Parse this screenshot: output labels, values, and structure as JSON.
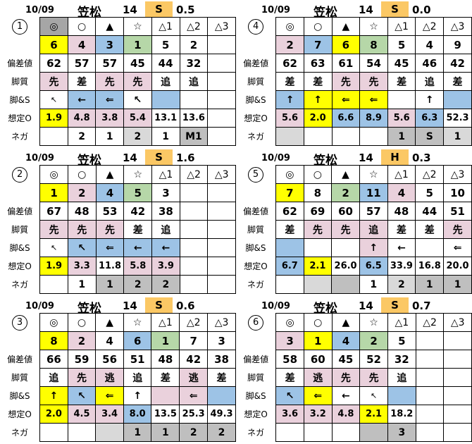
{
  "colors": {
    "yellow": "#ffff00",
    "pink": "#ead1dc",
    "blue": "#9dc3e6",
    "green": "#b6d7a8",
    "orange": "#fbc865",
    "gray_dark": "#a6a6a6",
    "gray_mid": "#bfbfbf",
    "gray_light": "#d9d9d9"
  },
  "row_order": [
    "marks",
    "numbers",
    "hensachi",
    "kyakushitsu",
    "legs_s",
    "souteiO",
    "nega"
  ],
  "row_labels": {
    "marks": "",
    "numbers": "",
    "hensachi": "偏差値",
    "kyakushitsu": "脚質",
    "legs_s": "脚&S",
    "souteiO": "想定O",
    "nega": "ネガ"
  },
  "tables": [
    {
      "number": "1",
      "header": {
        "date": "10/09",
        "track": "笠松",
        "race": "14",
        "cls": "S",
        "val": "0.5"
      },
      "rows": {
        "marks": [
          {
            "t": "◎",
            "c": "gd"
          },
          {
            "t": "○"
          },
          {
            "t": "▲"
          },
          {
            "t": "☆"
          },
          {
            "t": "△1"
          },
          {
            "t": "△2"
          },
          {
            "t": "△3"
          }
        ],
        "numbers": [
          {
            "t": "6",
            "c": "y"
          },
          {
            "t": "4",
            "c": "p"
          },
          {
            "t": "3",
            "c": "b"
          },
          {
            "t": "1",
            "c": "g"
          },
          {
            "t": "5"
          },
          {
            "t": "2"
          },
          {}
        ],
        "hensachi": [
          {
            "t": "62"
          },
          {
            "t": "57"
          },
          {
            "t": "57"
          },
          {
            "t": "45"
          },
          {
            "t": "44"
          },
          {
            "t": "32"
          },
          {}
        ],
        "kyakushitsu": [
          {
            "t": "先",
            "c": "p"
          },
          {
            "t": "差"
          },
          {
            "t": "先",
            "c": "p"
          },
          {
            "t": "先",
            "c": "p"
          },
          {
            "t": "追"
          },
          {
            "t": "追"
          },
          {}
        ],
        "legs_s": [
          {
            "t": "↖",
            "s": "thin"
          },
          {
            "t": "←",
            "c": "b"
          },
          {
            "t": "⇐",
            "c": "b"
          },
          {
            "t": "↖"
          },
          {
            "c": "b"
          },
          {},
          {}
        ],
        "souteiO": [
          {
            "t": "1.9",
            "c": "y"
          },
          {
            "t": "4.8",
            "c": "p"
          },
          {
            "t": "3.8",
            "c": "p"
          },
          {
            "t": "5.4",
            "c": "p"
          },
          {
            "t": "13.1"
          },
          {
            "t": "13.6"
          },
          {}
        ],
        "nega": [
          {},
          {
            "t": "2"
          },
          {
            "t": "1"
          },
          {
            "t": "2",
            "c": "gl"
          },
          {
            "t": "1"
          },
          {
            "t": "M1",
            "c": "gm"
          },
          {}
        ]
      }
    },
    {
      "number": "2",
      "header": {
        "date": "10/09",
        "track": "笠松",
        "race": "14",
        "cls": "S",
        "val": "1.6"
      },
      "rows": {
        "marks": [
          {
            "t": "◎"
          },
          {
            "t": "○"
          },
          {
            "t": "▲"
          },
          {
            "t": "☆"
          },
          {
            "t": "△1"
          },
          {
            "t": "△2"
          },
          {
            "t": "△3"
          }
        ],
        "numbers": [
          {
            "t": "1",
            "c": "y"
          },
          {
            "t": "2",
            "c": "p"
          },
          {
            "t": "4",
            "c": "b"
          },
          {
            "t": "5",
            "c": "g"
          },
          {
            "t": "3"
          },
          {},
          {}
        ],
        "hensachi": [
          {
            "t": "67"
          },
          {
            "t": "48"
          },
          {
            "t": "53"
          },
          {
            "t": "42"
          },
          {
            "t": "38"
          },
          {},
          {}
        ],
        "kyakushitsu": [
          {
            "t": "先",
            "c": "p"
          },
          {
            "t": "先",
            "c": "p"
          },
          {
            "t": "先",
            "c": "p"
          },
          {
            "t": "差"
          },
          {
            "t": "追"
          },
          {},
          {}
        ],
        "legs_s": [
          {
            "t": "↖",
            "s": "thin"
          },
          {
            "t": "↖",
            "c": "b"
          },
          {
            "t": "⇐",
            "c": "b"
          },
          {
            "t": "←",
            "c": "b"
          },
          {
            "t": "←",
            "c": "b"
          },
          {},
          {}
        ],
        "souteiO": [
          {
            "t": "1.9",
            "c": "y"
          },
          {
            "t": "3.3",
            "c": "p"
          },
          {
            "t": "11.8"
          },
          {
            "t": "5.8",
            "c": "p"
          },
          {
            "t": "3.9",
            "c": "p"
          },
          {},
          {}
        ],
        "nega": [
          {},
          {
            "t": "1"
          },
          {
            "t": "1",
            "c": "gm"
          },
          {
            "t": "2",
            "c": "gm"
          },
          {
            "t": "2",
            "c": "gm"
          },
          {},
          {}
        ]
      }
    },
    {
      "number": "3",
      "header": {
        "date": "10/09",
        "track": "笠松",
        "race": "14",
        "cls": "S",
        "val": "0.6"
      },
      "rows": {
        "marks": [
          {
            "t": "◎"
          },
          {
            "t": "○"
          },
          {
            "t": "▲"
          },
          {
            "t": "☆"
          },
          {
            "t": "△1"
          },
          {
            "t": "△2"
          },
          {
            "t": "△3"
          }
        ],
        "numbers": [
          {
            "t": "8",
            "c": "y"
          },
          {
            "t": "2",
            "c": "p"
          },
          {
            "t": "4"
          },
          {
            "t": "6",
            "c": "b"
          },
          {
            "t": "1",
            "c": "g"
          },
          {
            "t": "7"
          },
          {
            "t": "3"
          }
        ],
        "hensachi": [
          {
            "t": "66"
          },
          {
            "t": "59"
          },
          {
            "t": "56"
          },
          {
            "t": "51"
          },
          {
            "t": "48"
          },
          {
            "t": "42"
          },
          {
            "t": "38"
          }
        ],
        "kyakushitsu": [
          {
            "t": "追"
          },
          {
            "t": "先",
            "c": "p"
          },
          {
            "t": "逃",
            "c": "p"
          },
          {
            "t": "追"
          },
          {
            "t": "差"
          },
          {
            "t": "逃",
            "c": "p"
          },
          {
            "t": "差"
          }
        ],
        "legs_s": [
          {
            "t": "↑",
            "c": "y"
          },
          {
            "t": "↖",
            "c": "b"
          },
          {
            "t": "⇐",
            "c": "y"
          },
          {
            "t": "↑"
          },
          {
            "c": "p"
          },
          {
            "t": "⇐",
            "c": "p"
          },
          {
            "c": "b"
          }
        ],
        "souteiO": [
          {
            "t": "2.0",
            "c": "y"
          },
          {
            "t": "4.5",
            "c": "p"
          },
          {
            "t": "3.4",
            "c": "p"
          },
          {
            "t": "8.0",
            "c": "b"
          },
          {
            "t": "13.5"
          },
          {
            "t": "25.3"
          },
          {
            "t": "49.3"
          }
        ],
        "nega": [
          {},
          {},
          {
            "c": "gl"
          },
          {
            "t": "1",
            "c": "gm"
          },
          {
            "t": "1",
            "c": "gm"
          },
          {
            "t": "2",
            "c": "gm"
          },
          {
            "t": "2",
            "c": "gm"
          }
        ]
      }
    },
    {
      "number": "4",
      "header": {
        "date": "10/09",
        "track": "笠松",
        "race": "14",
        "cls": "S",
        "val": "0.0"
      },
      "rows": {
        "marks": [
          {
            "t": "◎"
          },
          {
            "t": "○"
          },
          {
            "t": "▲"
          },
          {
            "t": "☆"
          },
          {
            "t": "△1"
          },
          {
            "t": "△2"
          },
          {
            "t": "△3"
          }
        ],
        "numbers": [
          {
            "t": "2",
            "c": "p"
          },
          {
            "t": "7",
            "c": "b"
          },
          {
            "t": "6",
            "c": "y"
          },
          {
            "t": "8",
            "c": "g"
          },
          {
            "t": "5"
          },
          {
            "t": "4"
          },
          {
            "t": "9"
          }
        ],
        "hensachi": [
          {
            "t": "62"
          },
          {
            "t": "63"
          },
          {
            "t": "61"
          },
          {
            "t": "54"
          },
          {
            "t": "45"
          },
          {
            "t": "46"
          },
          {
            "t": "42"
          }
        ],
        "kyakushitsu": [
          {
            "t": "差"
          },
          {
            "t": "差"
          },
          {
            "t": "先",
            "c": "p"
          },
          {
            "t": "先",
            "c": "p"
          },
          {
            "t": "差"
          },
          {
            "t": "追"
          },
          {
            "t": "差"
          }
        ],
        "legs_s": [
          {
            "t": "↑",
            "c": "b"
          },
          {
            "t": "↑",
            "c": "y"
          },
          {
            "t": "⇐",
            "c": "y"
          },
          {
            "t": "⇐",
            "c": "y"
          },
          {},
          {
            "t": "↑"
          },
          {
            "c": "b"
          }
        ],
        "souteiO": [
          {
            "t": "5.6",
            "c": "p"
          },
          {
            "t": "2.0",
            "c": "y"
          },
          {
            "t": "6.6",
            "c": "b"
          },
          {
            "t": "8.9",
            "c": "b"
          },
          {
            "t": "5.6",
            "c": "p"
          },
          {
            "t": "6.3",
            "c": "b"
          },
          {
            "t": "52.3"
          }
        ],
        "nega": [
          {
            "c": "gl"
          },
          {},
          {},
          {},
          {
            "t": "1",
            "c": "gm"
          },
          {
            "t": "S",
            "c": "gm"
          },
          {
            "t": "1",
            "c": "gl"
          }
        ]
      }
    },
    {
      "number": "5",
      "header": {
        "date": "10/09",
        "track": "笠松",
        "race": "14",
        "cls": "H",
        "val": "0.3"
      },
      "rows": {
        "marks": [
          {
            "t": "◎"
          },
          {
            "t": "○"
          },
          {
            "t": "▲"
          },
          {
            "t": "☆"
          },
          {
            "t": "△1"
          },
          {
            "t": "△2"
          },
          {
            "t": "△3"
          }
        ],
        "numbers": [
          {
            "t": "7",
            "c": "y"
          },
          {
            "t": "8"
          },
          {
            "t": "2",
            "c": "g"
          },
          {
            "t": "11",
            "c": "b"
          },
          {
            "t": "4",
            "c": "p"
          },
          {
            "t": "5"
          },
          {
            "t": "10"
          }
        ],
        "hensachi": [
          {
            "t": "62"
          },
          {
            "t": "69"
          },
          {
            "t": "60"
          },
          {
            "t": "57"
          },
          {
            "t": "48"
          },
          {
            "t": "44"
          },
          {
            "t": "51"
          }
        ],
        "kyakushitsu": [
          {
            "t": "差"
          },
          {
            "t": "先",
            "c": "p"
          },
          {
            "t": "先",
            "c": "p"
          },
          {
            "t": "追",
            "c": "p"
          },
          {
            "t": "差"
          },
          {
            "t": "差"
          },
          {
            "t": "先",
            "c": "p"
          }
        ],
        "legs_s": [
          {
            "c": "b"
          },
          {},
          {},
          {
            "t": "↑",
            "c": "p"
          },
          {
            "t": "←"
          },
          {},
          {
            "t": "⇐"
          }
        ],
        "souteiO": [
          {
            "t": "6.7",
            "c": "b"
          },
          {
            "t": "2.1",
            "c": "y"
          },
          {
            "t": "26.0"
          },
          {
            "t": "6.5",
            "c": "b"
          },
          {
            "t": "33.9"
          },
          {
            "t": "16.8"
          },
          {
            "t": "20.0"
          }
        ],
        "nega": [
          {},
          {
            "c": "gl"
          },
          {
            "c": "gm"
          },
          {
            "t": "1"
          },
          {
            "t": "2",
            "c": "gl"
          },
          {
            "t": "1",
            "c": "gm"
          },
          {
            "t": "1",
            "c": "gm"
          }
        ]
      }
    },
    {
      "number": "6",
      "header": {
        "date": "10/09",
        "track": "笠松",
        "race": "14",
        "cls": "S",
        "val": "0.7"
      },
      "rows": {
        "marks": [
          {
            "t": "◎"
          },
          {
            "t": "○"
          },
          {
            "t": "▲"
          },
          {
            "t": "☆"
          },
          {
            "t": "△1"
          },
          {
            "t": "△2"
          },
          {
            "t": "△3"
          }
        ],
        "numbers": [
          {
            "t": "3",
            "c": "p"
          },
          {
            "t": "1",
            "c": "y"
          },
          {
            "t": "4",
            "c": "b"
          },
          {
            "t": "2",
            "c": "g"
          },
          {
            "t": "5"
          },
          {},
          {}
        ],
        "hensachi": [
          {
            "t": "58"
          },
          {
            "t": "60"
          },
          {
            "t": "45"
          },
          {
            "t": "52"
          },
          {
            "t": "32"
          },
          {},
          {}
        ],
        "kyakushitsu": [
          {
            "t": "差"
          },
          {
            "t": "逃",
            "c": "p"
          },
          {
            "t": "先",
            "c": "p"
          },
          {
            "t": "先",
            "c": "p"
          },
          {
            "t": "追"
          },
          {},
          {}
        ],
        "legs_s": [
          {
            "t": "↖",
            "c": "b"
          },
          {
            "t": "⇐",
            "c": "y"
          },
          {
            "t": "←"
          },
          {
            "t": "↖",
            "s": "thin"
          },
          {
            "c": "b"
          },
          {},
          {}
        ],
        "souteiO": [
          {
            "t": "3.6",
            "c": "p"
          },
          {
            "t": "3.2",
            "c": "p"
          },
          {
            "t": "4.8",
            "c": "p"
          },
          {
            "t": "2.1",
            "c": "y"
          },
          {
            "t": "18.2"
          },
          {},
          {}
        ],
        "nega": [
          {},
          {},
          {},
          {
            "c": "gm"
          },
          {
            "t": "3",
            "c": "gm"
          },
          {},
          {}
        ]
      }
    }
  ]
}
